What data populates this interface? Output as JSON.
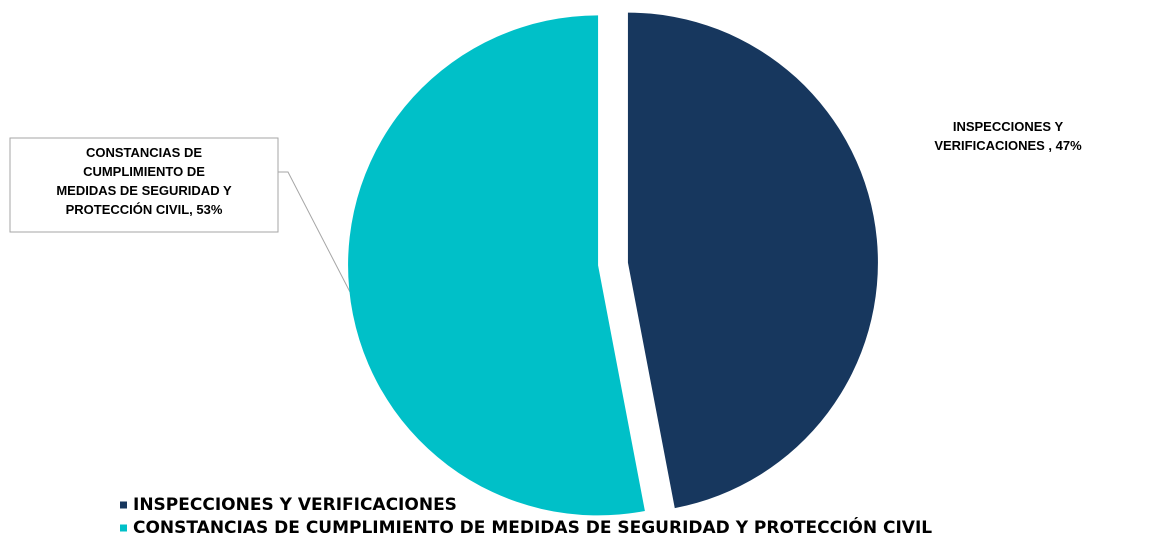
{
  "chart_data": {
    "type": "pie",
    "categories": [
      "INSPECCIONES Y VERIFICACIONES",
      "CONSTANCIAS DE CUMPLIMIENTO DE MEDIDAS DE SEGURIDAD Y PROTECCIÓN CIVIL"
    ],
    "values": [
      47,
      53
    ],
    "value_labels": [
      "INSPECCIONES Y VERIFICACIONES , 47%",
      "CONSTANCIAS DE CUMPLIMIENTO DE MEDIDAS DE SEGURIDAD Y PROTECCIÓN CIVIL, 53%"
    ],
    "colors": [
      "#17375e",
      "#00c0c8"
    ],
    "legend": "bottom"
  }
}
